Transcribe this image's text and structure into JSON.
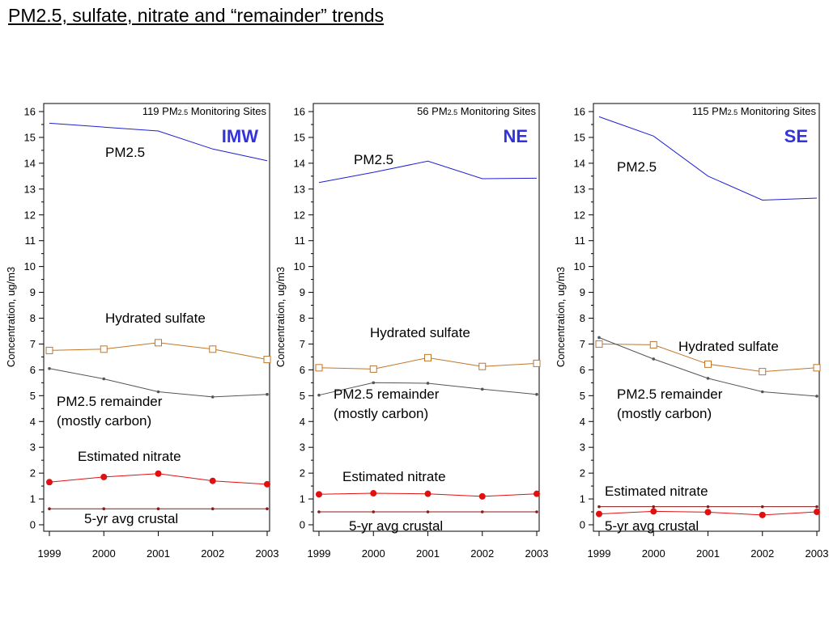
{
  "page": {
    "title": "PM2.5, sulfate, nitrate and “remainder” trends"
  },
  "colors": {
    "pm25": "#2020d0",
    "sulfate": "#c0762a",
    "remainder": "#555555",
    "nitrate": "#e01010",
    "crustal": "#8b1a1a",
    "region": "#3333dd"
  },
  "chart_data": [
    {
      "type": "line",
      "region": "IMW",
      "sites_prefix": "119 PM",
      "sites_sub": "2.5",
      "sites_suffix": " Monitoring Sites",
      "ylabel": "Concentration, ug/m3",
      "xlabel": "",
      "ylim": [
        0,
        16
      ],
      "yticks": [
        0,
        1,
        2,
        3,
        4,
        5,
        6,
        7,
        8,
        9,
        10,
        11,
        12,
        13,
        14,
        15,
        16
      ],
      "x": [
        "1999",
        "2000",
        "2001",
        "2002",
        "2003"
      ],
      "series": [
        {
          "key": "pm25",
          "name": "PM2.5",
          "values": [
            15.55,
            15.4,
            15.25,
            14.55,
            14.1
          ]
        },
        {
          "key": "sulfate",
          "name": "Hydrated sulfate",
          "values": [
            6.75,
            6.8,
            7.05,
            6.8,
            6.4
          ]
        },
        {
          "key": "remainder",
          "name": "PM2.5 remainder",
          "name2": "(mostly carbon)",
          "values": [
            6.05,
            5.65,
            5.15,
            4.95,
            5.05
          ]
        },
        {
          "key": "nitrate",
          "name": "Estimated nitrate",
          "values": [
            1.65,
            1.85,
            1.98,
            1.7,
            1.57
          ]
        },
        {
          "key": "crustal",
          "name": "5-yr avg crustal",
          "values": [
            0.62,
            0.62,
            0.62,
            0.62,
            0.62
          ]
        }
      ]
    },
    {
      "type": "line",
      "region": "NE",
      "sites_prefix": "56 PM",
      "sites_sub": "2.5",
      "sites_suffix": " Monitoring Sites",
      "ylabel": "Concentration, ug/m3",
      "xlabel": "",
      "ylim": [
        0,
        16
      ],
      "yticks": [
        0,
        1,
        2,
        3,
        4,
        5,
        6,
        7,
        8,
        9,
        10,
        11,
        12,
        13,
        14,
        15,
        16
      ],
      "x": [
        "1999",
        "2000",
        "2001",
        "2002",
        "2003"
      ],
      "series": [
        {
          "key": "pm25",
          "name": "PM2.5",
          "values": [
            13.25,
            13.65,
            14.08,
            13.4,
            13.42
          ]
        },
        {
          "key": "sulfate",
          "name": "Hydrated sulfate",
          "values": [
            6.08,
            6.03,
            6.47,
            6.13,
            6.25
          ]
        },
        {
          "key": "remainder",
          "name": "PM2.5 remainder",
          "name2": "(mostly carbon)",
          "values": [
            5.02,
            5.5,
            5.48,
            5.25,
            5.05
          ]
        },
        {
          "key": "nitrate",
          "name": "Estimated nitrate",
          "values": [
            1.18,
            1.22,
            1.2,
            1.1,
            1.2
          ]
        },
        {
          "key": "crustal",
          "name": "5-yr avg crustal",
          "values": [
            0.5,
            0.5,
            0.5,
            0.5,
            0.5
          ]
        }
      ]
    },
    {
      "type": "line",
      "region": "SE",
      "sites_prefix": "115 PM",
      "sites_sub": "2.5",
      "sites_suffix": " Monitoring Sites",
      "ylabel": "Concentration, ug/m3",
      "xlabel": "",
      "ylim": [
        0,
        16
      ],
      "yticks": [
        0,
        1,
        2,
        3,
        4,
        5,
        6,
        7,
        8,
        9,
        10,
        11,
        12,
        13,
        14,
        15,
        16
      ],
      "x": [
        "1999",
        "2000",
        "2001",
        "2002",
        "2003"
      ],
      "series": [
        {
          "key": "pm25",
          "name": "PM2.5",
          "values": [
            15.8,
            15.05,
            13.5,
            12.57,
            12.65
          ]
        },
        {
          "key": "sulfate",
          "name": "Hydrated sulfate",
          "values": [
            7.0,
            6.97,
            6.22,
            5.93,
            6.08
          ]
        },
        {
          "key": "remainder",
          "name": "PM2.5 remainder",
          "name2": "(mostly carbon)",
          "values": [
            7.25,
            6.42,
            5.67,
            5.15,
            4.98
          ]
        },
        {
          "key": "nitrate",
          "name": "Estimated nitrate",
          "values": [
            0.42,
            0.52,
            0.49,
            0.38,
            0.5
          ]
        },
        {
          "key": "crustal",
          "name": "5-yr avg crustal",
          "values": [
            0.7,
            0.7,
            0.7,
            0.7,
            0.7
          ]
        }
      ]
    }
  ]
}
